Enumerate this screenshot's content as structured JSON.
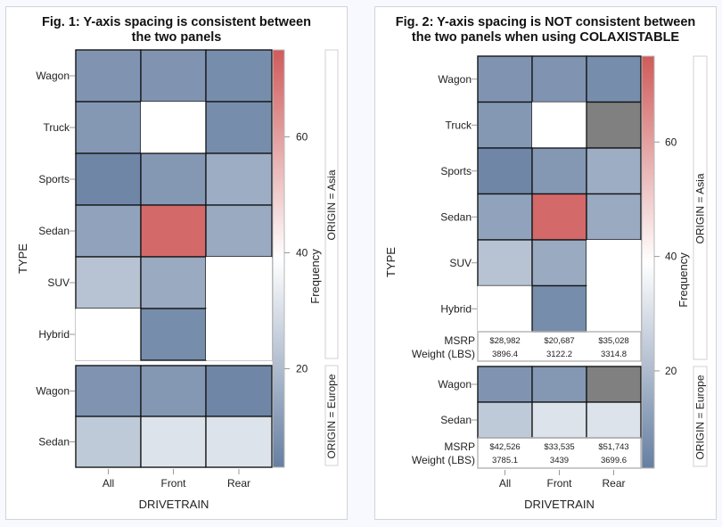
{
  "chart_data": [
    {
      "type": "heatmap",
      "title": "Fig. 1: Y-axis spacing is consistent between the two panels",
      "xlabel": "DRIVETRAIN",
      "ylabel": "TYPE",
      "colorbar_label": "Frequency",
      "colorbar_ticks": [
        20,
        40,
        60
      ],
      "colorbar_range": [
        3,
        75
      ],
      "colorbar_colors": {
        "low": "#667fa2",
        "mid": "#ffffff",
        "high": "#d05b5b"
      },
      "missing_color": "#ffffff",
      "x_categories": [
        "All",
        "Front",
        "Rear"
      ],
      "panels": [
        {
          "label": "ORIGIN = Asia",
          "rows": [
            "Wagon",
            "Truck",
            "Sports",
            "Sedan",
            "SUV",
            "Hybrid"
          ],
          "values": [
            [
              9,
              9,
              7
            ],
            [
              10,
              null,
              7
            ],
            [
              5,
              10,
              16
            ],
            [
              13,
              72,
              15
            ],
            [
              22,
              15,
              null
            ],
            [
              null,
              7,
              null
            ]
          ]
        },
        {
          "label": "ORIGIN = Europe",
          "rows": [
            "Wagon",
            "Sedan"
          ],
          "values": [
            [
              9,
              10,
              5
            ],
            [
              24,
              31,
              31
            ]
          ]
        }
      ]
    },
    {
      "type": "heatmap",
      "title": "Fig. 2: Y-axis spacing is NOT consistent between the two panels when using COLAXISTABLE",
      "xlabel": "DRIVETRAIN",
      "ylabel": "TYPE",
      "colorbar_label": "Frequency",
      "colorbar_ticks": [
        20,
        40,
        60
      ],
      "colorbar_range": [
        3,
        75
      ],
      "colorbar_colors": {
        "low": "#667fa2",
        "mid": "#ffffff",
        "high": "#d05b5b"
      },
      "missing_color": "#ffffff",
      "gray_color": "#808080",
      "x_categories": [
        "All",
        "Front",
        "Rear"
      ],
      "table_row_labels": [
        "MSRP",
        "Weight (LBS)"
      ],
      "panels": [
        {
          "label": "ORIGIN = Asia",
          "rows": [
            "Wagon",
            "Truck",
            "Sports",
            "Sedan",
            "SUV",
            "Hybrid"
          ],
          "values": [
            [
              9,
              9,
              7
            ],
            [
              10,
              null,
              "gray"
            ],
            [
              5,
              10,
              16
            ],
            [
              13,
              72,
              15
            ],
            [
              22,
              15,
              null
            ],
            [
              null,
              7,
              null
            ]
          ],
          "table": {
            "MSRP": [
              "$28,982",
              "$20,687",
              "$35,028"
            ],
            "Weight (LBS)": [
              "3896.4",
              "3122.2",
              "3314.8"
            ]
          }
        },
        {
          "label": "ORIGIN = Europe",
          "rows": [
            "Wagon",
            "Sedan"
          ],
          "values": [
            [
              9,
              10,
              "gray"
            ],
            [
              24,
              31,
              31
            ]
          ],
          "table": {
            "MSRP": [
              "$42,526",
              "$33,535",
              "$51,743"
            ],
            "Weight (LBS)": [
              "3785.1",
              "3439",
              "3699.6"
            ]
          }
        }
      ]
    }
  ]
}
